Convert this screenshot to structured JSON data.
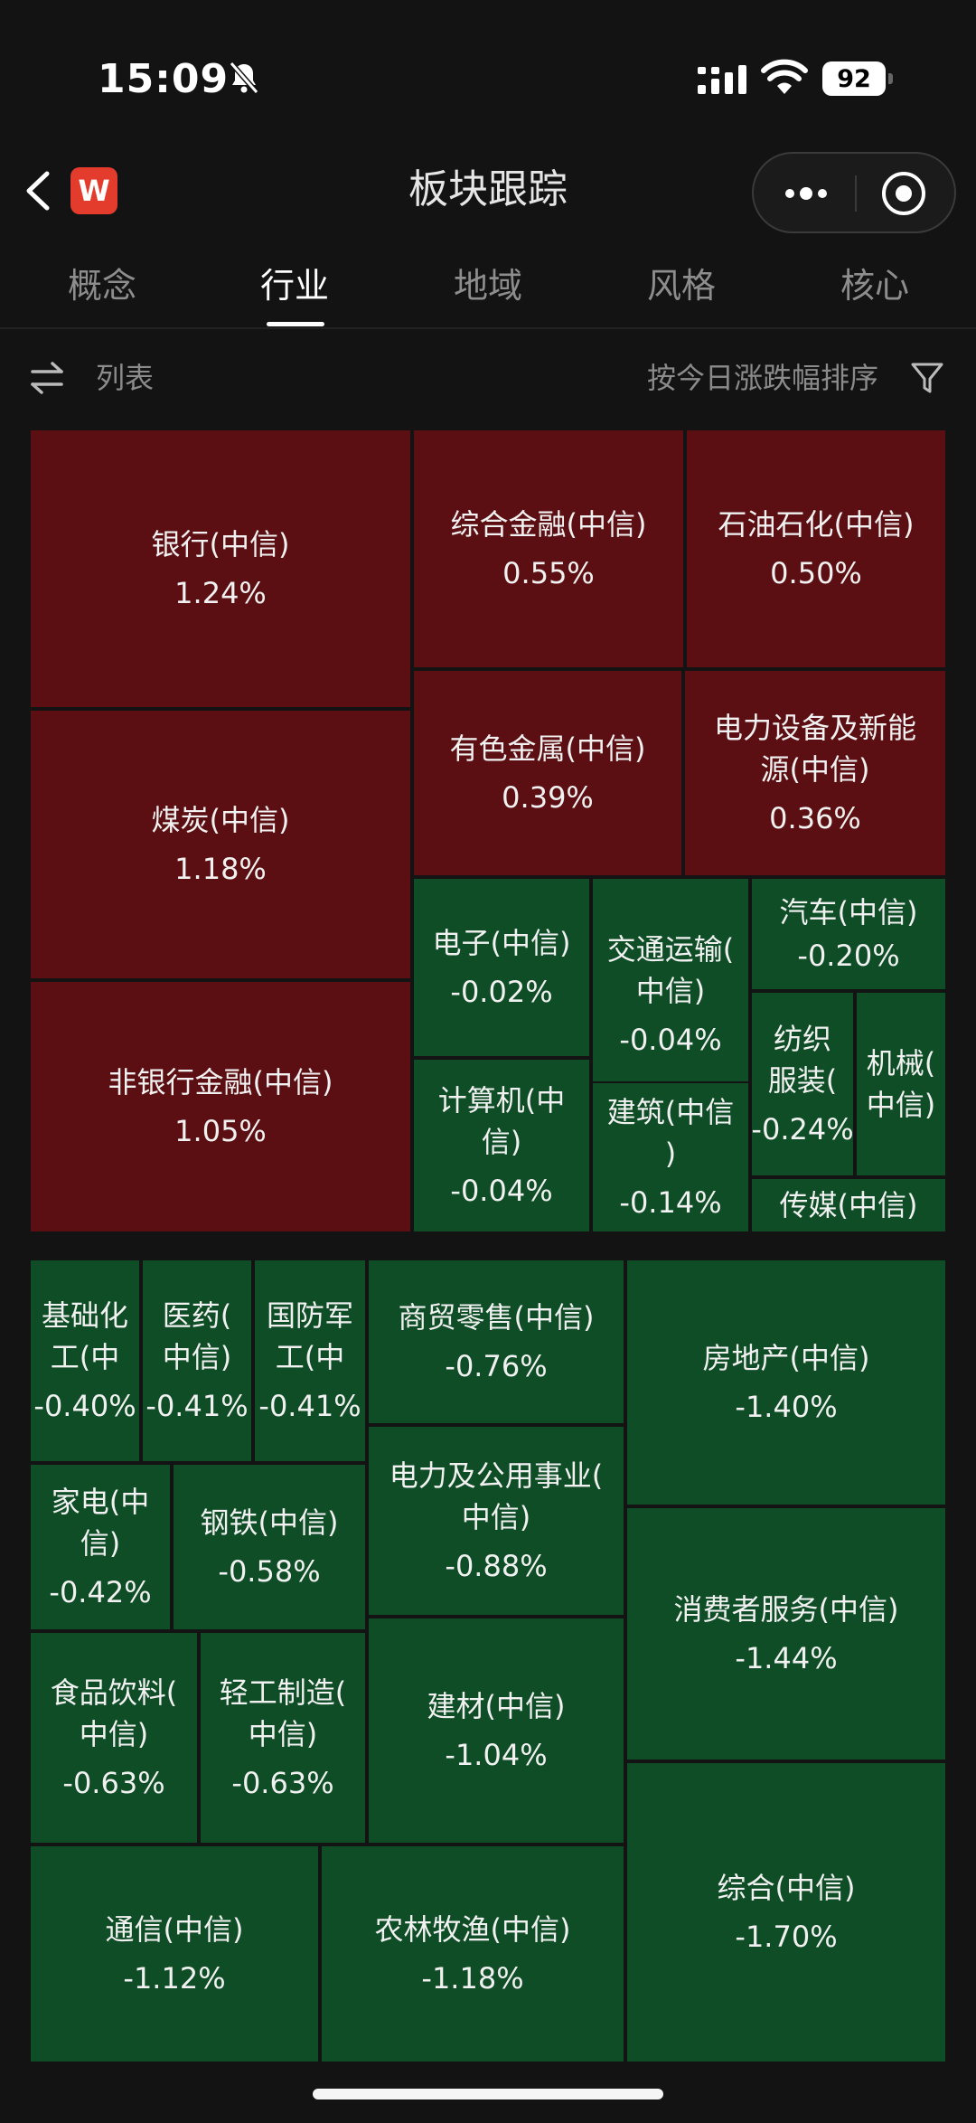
{
  "status_bar": {
    "time": "15:09",
    "battery": "92"
  },
  "nav": {
    "logo": "W",
    "title": "板块跟踪"
  },
  "tabs": [
    {
      "label": "概念",
      "active": false
    },
    {
      "label": "行业",
      "active": true
    },
    {
      "label": "地域",
      "active": false
    },
    {
      "label": "风格",
      "active": false
    },
    {
      "label": "核心",
      "active": false
    }
  ],
  "toolbar": {
    "list_label": "列表",
    "sort_label": "按今日涨跌幅排序"
  },
  "colors": {
    "up": "#5c0f12",
    "down": "#0e4d26",
    "background": "#131313"
  },
  "sectors": [
    {
      "name": "银行(中信)",
      "change": "1.24%"
    },
    {
      "name": "煤炭(中信)",
      "change": "1.18%"
    },
    {
      "name": "非银行金融(中信)",
      "change": "1.05%"
    },
    {
      "name": "综合金融(中信)",
      "change": "0.55%"
    },
    {
      "name": "石油石化(中信)",
      "change": "0.50%"
    },
    {
      "name": "有色金属(中信)",
      "change": "0.39%"
    },
    {
      "name": "电力设备及新能\n源(中信)",
      "change": "0.36%"
    },
    {
      "name": "电子(中信)",
      "change": "-0.02%"
    },
    {
      "name": "交通运输(\n中信)",
      "change": "-0.04%"
    },
    {
      "name": "汽车(中信)",
      "change": "-0.20%"
    },
    {
      "name": "计算机(中\n信)",
      "change": "-0.04%"
    },
    {
      "name": "建筑(中信\n)",
      "change": "-0.14%"
    },
    {
      "name": "纺织\n服装(",
      "change": "-0.24%"
    },
    {
      "name": "机械(\n中信)",
      "change": ""
    },
    {
      "name": "传媒(中信)",
      "change": ""
    },
    {
      "name": "基础化\n工(中",
      "change": "-0.40%"
    },
    {
      "name": "医药(\n中信)",
      "change": "-0.41%"
    },
    {
      "name": "国防军\n工(中",
      "change": "-0.41%"
    },
    {
      "name": "商贸零售(中信)",
      "change": "-0.76%"
    },
    {
      "name": "房地产(中信)",
      "change": "-1.40%"
    },
    {
      "name": "家电(中\n信)",
      "change": "-0.42%"
    },
    {
      "name": "钢铁(中信)",
      "change": "-0.58%"
    },
    {
      "name": "电力及公用事业(\n中信)",
      "change": "-0.88%"
    },
    {
      "name": "消费者服务(中信)",
      "change": "-1.44%"
    },
    {
      "name": "食品饮料(\n中信)",
      "change": "-0.63%"
    },
    {
      "name": "轻工制造(\n中信)",
      "change": "-0.63%"
    },
    {
      "name": "建材(中信)",
      "change": "-1.04%"
    },
    {
      "name": "综合(中信)",
      "change": "-1.70%"
    },
    {
      "name": "通信(中信)",
      "change": "-1.12%"
    },
    {
      "name": "农林牧渔(中信)",
      "change": "-1.18%"
    }
  ]
}
